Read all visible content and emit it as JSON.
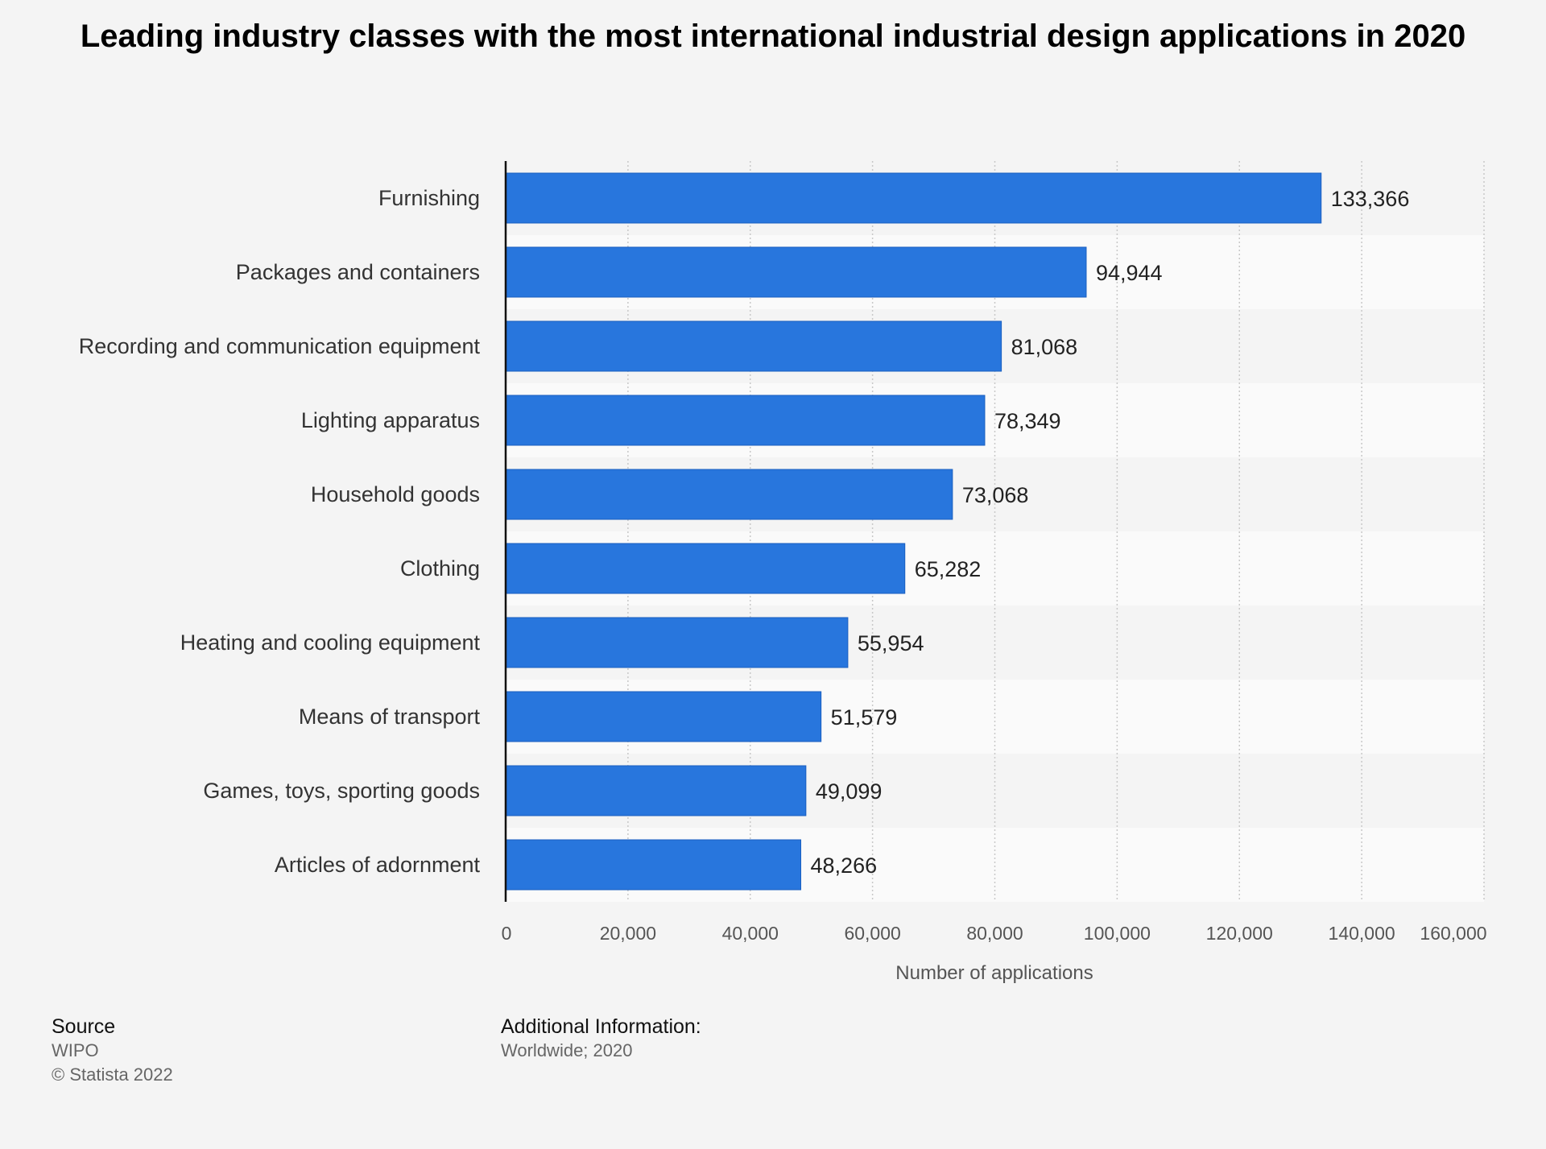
{
  "title": "Leading industry classes with the most international industrial design applications in 2020",
  "chart_data": {
    "type": "bar",
    "orientation": "horizontal",
    "categories": [
      "Furnishing",
      "Packages and containers",
      "Recording and communication equipment",
      "Lighting apparatus",
      "Household goods",
      "Clothing",
      "Heating and cooling equipment",
      "Means of transport",
      "Games, toys, sporting goods",
      "Articles of adornment"
    ],
    "values": [
      133366,
      94944,
      81068,
      78349,
      73068,
      65282,
      55954,
      51579,
      49099,
      48266
    ],
    "value_labels": [
      "133,366",
      "94,944",
      "81,068",
      "78,349",
      "73,068",
      "65,282",
      "55,954",
      "51,579",
      "49,099",
      "48,266"
    ],
    "xlabel": "Number of applications",
    "ylabel": "",
    "xlim": [
      0,
      160000
    ],
    "xticks": [
      "0",
      "20,000",
      "40,000",
      "60,000",
      "80,000",
      "100,000",
      "120,000",
      "140,000",
      "160,000"
    ],
    "grid": "vertical dotted",
    "bar_color": "#2876dd"
  },
  "footer": {
    "source_heading": "Source",
    "source_value": "WIPO",
    "copyright": "© Statista 2022",
    "info_heading": "Additional Information:",
    "info_value": "Worldwide; 2020"
  }
}
